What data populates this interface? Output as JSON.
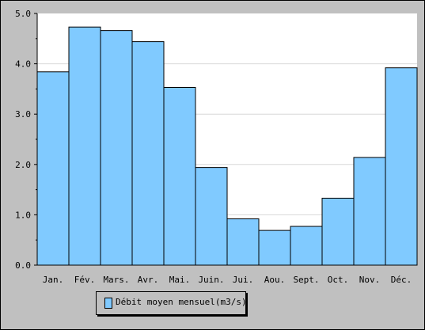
{
  "chart_data": {
    "type": "bar",
    "categories": [
      "Jan.",
      "Fév.",
      "Mars.",
      "Avr.",
      "Mai.",
      "Juin.",
      "Jui.",
      "Aou.",
      "Sept.",
      "Oct.",
      "Nov.",
      "Déc."
    ],
    "series": [
      {
        "name": "Débit moyen mensuel(m3/s)",
        "values": [
          3.84,
          4.73,
          4.66,
          4.44,
          3.53,
          1.94,
          0.92,
          0.69,
          0.77,
          1.33,
          2.14,
          3.92
        ]
      }
    ],
    "y_ticks": [
      "0.0",
      "1.0",
      "2.0",
      "3.0",
      "4.0",
      "5.0"
    ],
    "ylim": [
      0,
      5
    ],
    "title": "",
    "xlabel": "",
    "ylabel": "",
    "grid": true,
    "legend_position": "bottom-left",
    "colors": {
      "bar_fill": "#80caff",
      "bar_stroke": "#000000",
      "plot_background": "#ffffff",
      "chart_background": "#c0c0c0",
      "gridline": "#d8d8d8"
    }
  }
}
